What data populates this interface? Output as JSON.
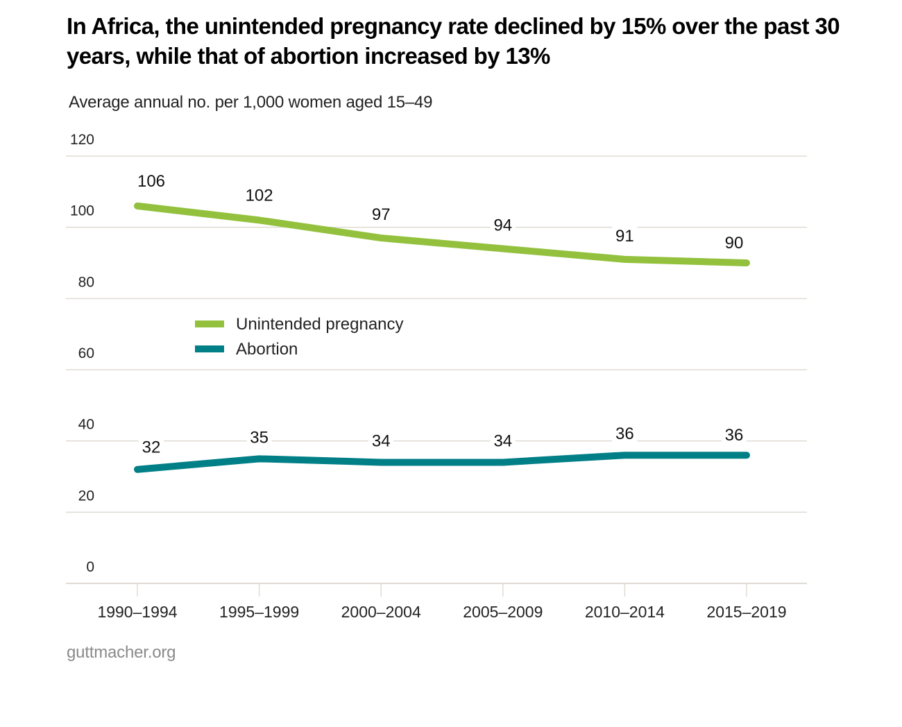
{
  "header": {
    "title": "In Africa, the unintended pregnancy rate declined by 15% over the past 30 years, while that of abortion increased by 13%",
    "subtitle": "Average annual no. per 1,000 women aged 15–49"
  },
  "footer": {
    "source": "guttmacher.org"
  },
  "chart_data": {
    "type": "line",
    "title": "In Africa, the unintended pregnancy rate declined by 15% over the past 30 years, while that of abortion increased by 13%",
    "ylabel": "Average annual no. per 1,000 women aged 15–49",
    "xlabel": "",
    "categories": [
      "1990–1994",
      "1995–1999",
      "2000–2004",
      "2005–2009",
      "2010–2014",
      "2015–2019"
    ],
    "ylim": [
      0,
      120
    ],
    "yticks": [
      0,
      20,
      40,
      60,
      80,
      100,
      120
    ],
    "grid": true,
    "legend_position": "center-left",
    "series": [
      {
        "name": "Unintended pregnancy",
        "color": "#93c13e",
        "values": [
          106,
          102,
          97,
          94,
          91,
          90
        ]
      },
      {
        "name": "Abortion",
        "color": "#007f87",
        "values": [
          32,
          35,
          34,
          34,
          36,
          36
        ]
      }
    ],
    "colors": {
      "grid": "#e0dbd3",
      "axis": "#e0dbd3",
      "tick_label": "#222222",
      "data_label": "#111111"
    }
  }
}
